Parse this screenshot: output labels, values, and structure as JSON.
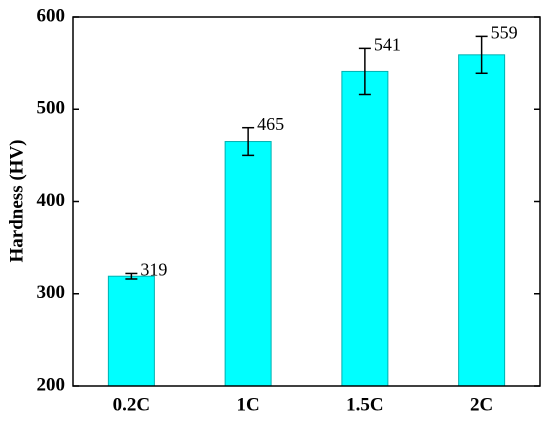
{
  "chart_data": {
    "type": "bar",
    "y_label": "Hardness (HV)",
    "categories": [
      "0.2C",
      "1C",
      "1.5C",
      "2C"
    ],
    "values": [
      319,
      465,
      541,
      559
    ],
    "errors": [
      3,
      15,
      25,
      20
    ],
    "color": "#00ffff",
    "ylim": [
      200,
      600
    ],
    "yticks": [
      200,
      300,
      400,
      500,
      600
    ]
  }
}
